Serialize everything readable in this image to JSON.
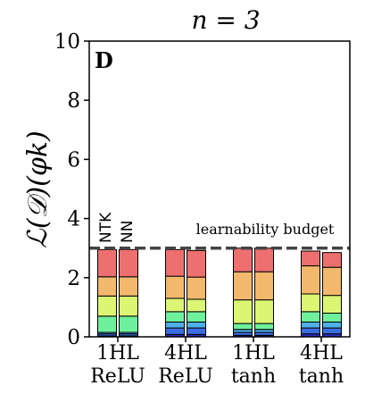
{
  "chart_data": {
    "type": "bar",
    "title": "n = 3",
    "panel_label": "D",
    "ylabel": "ℒ(𝒟)(φk)",
    "ylim": [
      0,
      10
    ],
    "yticks": [
      "0",
      "2",
      "4",
      "6",
      "8",
      "10"
    ],
    "bar_labels": [
      "NTK",
      "NN"
    ],
    "budget": {
      "value": 3,
      "label": "learnability budget"
    },
    "categories": [
      {
        "line1": "1HL",
        "line2": "ReLU"
      },
      {
        "line1": "4HL",
        "line2": "ReLU"
      },
      {
        "line1": "1HL",
        "line2": "tanh"
      },
      {
        "line1": "4HL",
        "line2": "tanh"
      }
    ],
    "segment_colors": [
      "#2c2cc4",
      "#3a6de0",
      "#4fb0e8",
      "#6ef09c",
      "#dcf572",
      "#f2b86c",
      "#ee6f6f"
    ],
    "stacks": [
      {
        "category": "1HL ReLU",
        "bar": "NTK",
        "segments": [
          0.03,
          0.07,
          0.05,
          0.55,
          0.68,
          0.65,
          0.92
        ]
      },
      {
        "category": "1HL ReLU",
        "bar": "NN",
        "segments": [
          0.03,
          0.07,
          0.05,
          0.55,
          0.68,
          0.65,
          0.92
        ]
      },
      {
        "category": "4HL ReLU",
        "bar": "NTK",
        "segments": [
          0.08,
          0.22,
          0.2,
          0.35,
          0.45,
          0.75,
          0.9
        ]
      },
      {
        "category": "4HL ReLU",
        "bar": "NN",
        "segments": [
          0.08,
          0.22,
          0.2,
          0.35,
          0.42,
          0.75,
          0.9
        ]
      },
      {
        "category": "1HL tanh",
        "bar": "NTK",
        "segments": [
          0.05,
          0.1,
          0.1,
          0.2,
          0.8,
          0.95,
          0.8
        ]
      },
      {
        "category": "1HL tanh",
        "bar": "NN",
        "segments": [
          0.05,
          0.1,
          0.1,
          0.2,
          0.8,
          0.95,
          0.8
        ]
      },
      {
        "category": "4HL tanh",
        "bar": "NTK",
        "segments": [
          0.1,
          0.2,
          0.2,
          0.35,
          0.6,
          0.95,
          0.5
        ]
      },
      {
        "category": "4HL tanh",
        "bar": "NN",
        "segments": [
          0.1,
          0.2,
          0.2,
          0.3,
          0.6,
          0.95,
          0.5
        ]
      }
    ]
  }
}
